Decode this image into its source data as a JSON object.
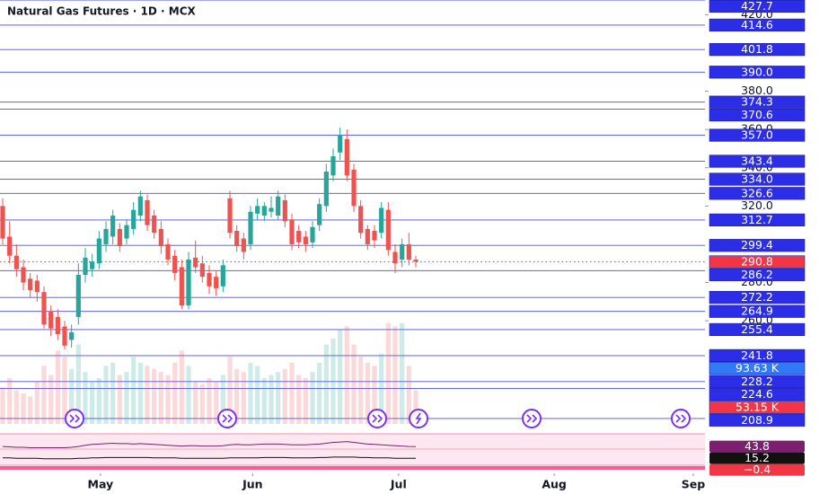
{
  "chart_data": [
    {
      "type": "candlestick",
      "title": "Natural Gas Futures · 1D · MCX",
      "open": [
        320,
        304,
        294,
        288,
        282,
        281,
        275,
        265,
        262,
        257,
        250,
        262,
        284,
        287,
        290,
        300,
        304,
        308,
        303,
        308,
        315,
        323,
        315,
        308,
        300,
        294,
        288,
        268,
        293,
        290,
        285,
        283,
        278,
        324,
        307,
        303,
        300,
        316,
        315,
        317,
        315,
        323,
        313,
        307,
        304,
        301,
        310,
        320,
        336,
        348,
        355,
        339,
        320,
        308,
        307,
        306,
        318,
        296,
        292,
        300,
        292
      ],
      "high": [
        324,
        312,
        300,
        292,
        285,
        284,
        278,
        268,
        266,
        260,
        258,
        290,
        298,
        295,
        307,
        312,
        318,
        311,
        313,
        322,
        328,
        326,
        318,
        312,
        303,
        297,
        292,
        296,
        302,
        294,
        289,
        286,
        292,
        328,
        310,
        306,
        320,
        324,
        322,
        325,
        328,
        326,
        316,
        310,
        307,
        312,
        324,
        342,
        350,
        361,
        360,
        342,
        323,
        310,
        310,
        322,
        322,
        300,
        303,
        306,
        294
      ],
      "low": [
        300,
        290,
        283,
        276,
        272,
        270,
        256,
        252,
        250,
        245,
        246,
        258,
        280,
        283,
        287,
        296,
        300,
        296,
        300,
        305,
        312,
        307,
        303,
        295,
        289,
        281,
        266,
        266,
        285,
        280,
        274,
        273,
        275,
        303,
        296,
        292,
        297,
        313,
        312,
        314,
        313,
        309,
        297,
        298,
        296,
        298,
        307,
        317,
        333,
        344,
        333,
        317,
        303,
        297,
        298,
        303,
        294,
        285,
        288,
        289,
        288
      ],
      "close": [
        303,
        294,
        287,
        280,
        276,
        275,
        258,
        256,
        253,
        247,
        254,
        284,
        293,
        291,
        303,
        308,
        315,
        299,
        310,
        318,
        325,
        310,
        306,
        299,
        292,
        285,
        268,
        292,
        288,
        283,
        278,
        277,
        289,
        306,
        299,
        296,
        317,
        320,
        320,
        319,
        325,
        312,
        300,
        301,
        300,
        309,
        321,
        338,
        346,
        357,
        336,
        320,
        306,
        300,
        302,
        319,
        297,
        290,
        300,
        292,
        291
      ],
      "up_color": "#26a69a",
      "down_color": "#ef5350",
      "ylim": [
        207,
        427.7
      ],
      "yticks": [
        {
          "value": 420,
          "label": "420.0"
        },
        {
          "value": 380,
          "label": "380.0"
        },
        {
          "value": 360,
          "label": "360.0"
        },
        {
          "value": 340,
          "label": "340.0"
        },
        {
          "value": 320,
          "label": "320.0"
        },
        {
          "value": 280,
          "label": "280.0"
        },
        {
          "value": 260,
          "label": "260.0"
        }
      ],
      "levels": [
        427.7,
        414.6,
        401.8,
        {
          "value": 390,
          "label": "390.0"
        },
        374.3,
        370.6,
        {
          "value": 357,
          "label": "357.0"
        },
        343.4,
        {
          "value": 334,
          "label": "334.0"
        },
        326.6,
        312.7,
        299.4,
        286.2,
        272.2,
        264.9,
        255.4,
        241.8,
        228.2,
        224.6,
        208.9
      ],
      "level_color": "#2b2ee6",
      "last_price": 290.8,
      "last_price_color": "#f23645",
      "xlim": [
        0,
        102
      ],
      "xticks": [
        {
          "value": 14.2,
          "label": "May"
        },
        {
          "value": 36.3,
          "label": "Jun"
        },
        {
          "value": 57.5,
          "label": "Jul"
        },
        {
          "value": 80.1,
          "label": "Aug"
        },
        {
          "value": 100.3,
          "label": "Sep"
        }
      ]
    },
    {
      "type": "bar",
      "values": [
        60,
        75,
        55,
        50,
        45,
        70,
        95,
        80,
        120,
        110,
        90,
        130,
        85,
        70,
        75,
        95,
        100,
        80,
        85,
        110,
        100,
        95,
        90,
        85,
        80,
        100,
        120,
        95,
        70,
        65,
        75,
        70,
        80,
        110,
        90,
        85,
        100,
        95,
        75,
        80,
        85,
        90,
        100,
        80,
        75,
        85,
        100,
        130,
        140,
        155,
        160,
        130,
        110,
        100,
        95,
        115,
        165,
        160,
        165,
        95,
        55
      ],
      "ylim": [
        0,
        172
      ],
      "markers": [
        {
          "value": 93.63,
          "label": "93.63 K",
          "color": "#3179f5"
        },
        {
          "value": 53.15,
          "label": "53.15 K",
          "color": "#f23645"
        }
      ]
    },
    {
      "type": "line",
      "series": [
        {
          "color": "#7b1f6e",
          "values": [
            44,
            43,
            42,
            42,
            41,
            41,
            41,
            41,
            41,
            41,
            42,
            44,
            47,
            49,
            50,
            51,
            52,
            51,
            51,
            50,
            51,
            50,
            49,
            48,
            47,
            46,
            45,
            46,
            46,
            45,
            45,
            45,
            46,
            48,
            49,
            48,
            48,
            49,
            50,
            50,
            50,
            49,
            48,
            48,
            48,
            49,
            50,
            52,
            54,
            55,
            56,
            54,
            52,
            50,
            49,
            48,
            47,
            46,
            45,
            44,
            43.8
          ]
        },
        {
          "color": "#111111",
          "values": [
            16,
            16,
            15,
            15,
            15,
            15,
            14,
            14,
            14,
            14,
            14,
            15,
            15,
            16,
            16,
            17,
            17,
            17,
            17,
            17,
            17,
            17,
            16,
            16,
            16,
            16,
            15,
            15,
            15,
            15,
            15,
            15,
            15,
            16,
            16,
            16,
            16,
            16,
            17,
            17,
            17,
            17,
            16,
            16,
            16,
            16,
            17,
            17,
            18,
            18,
            18,
            18,
            17,
            17,
            16,
            16,
            16,
            15,
            15,
            15,
            15.2
          ]
        }
      ],
      "ylim": [
        -2,
        75
      ],
      "markers": [
        {
          "value": 43.8,
          "color": "#7b1f6e"
        },
        {
          "value": 15.2,
          "color": "#111111"
        },
        {
          "value": -0.4,
          "label": "−0.4",
          "color": "#f23645"
        }
      ]
    }
  ]
}
